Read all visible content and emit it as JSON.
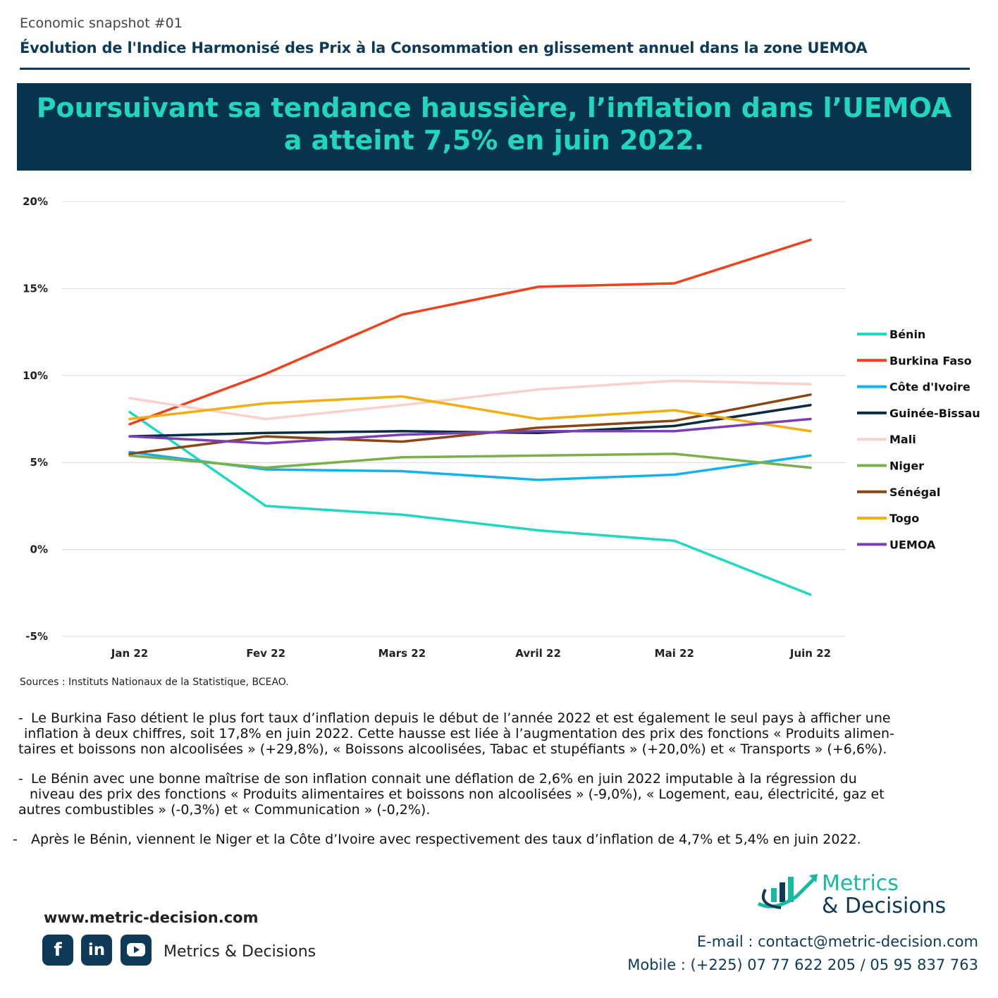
{
  "header": {
    "snapshot": "Economic snapshot #01",
    "subtitle": "Évolution de l'Indice Harmonisé des Prix à la Consommation en glissement annuel dans la zone UEMOA",
    "banner_line1": "Poursuivant sa tendance haussière, l’inflation dans l’UEMOA",
    "banner_line2": "a atteint 7,5% en juin 2022."
  },
  "chart_data": {
    "type": "line",
    "categories": [
      "Jan 22",
      "Fev 22",
      "Mars 22",
      "Avril 22",
      "Mai 22",
      "Juin 22"
    ],
    "y_ticks": [
      "20%",
      "15%",
      "10%",
      "5%",
      "0%",
      "-5%"
    ],
    "y_tick_values": [
      20,
      15,
      10,
      5,
      0,
      -5
    ],
    "ylim": [
      -5,
      20
    ],
    "grid": true,
    "legend_position": "right",
    "series": [
      {
        "name": "Bénin",
        "color": "#1fd8c0",
        "values": [
          7.9,
          2.5,
          2.0,
          1.1,
          0.5,
          -2.6
        ]
      },
      {
        "name": "Burkina Faso",
        "color": "#f0401c",
        "values": [
          7.2,
          10.1,
          13.5,
          15.1,
          15.3,
          17.8
        ]
      },
      {
        "name": "Côte d'Ivoire",
        "color": "#12b3ec",
        "values": [
          5.6,
          4.6,
          4.5,
          4.0,
          4.3,
          5.4
        ]
      },
      {
        "name": "Guinée-Bissau",
        "color": "#0b2b40",
        "values": [
          6.5,
          6.7,
          6.8,
          6.7,
          7.1,
          8.3
        ]
      },
      {
        "name": "Mali",
        "color": "#fbcfcc",
        "values": [
          8.7,
          7.5,
          8.3,
          9.2,
          9.7,
          9.5
        ]
      },
      {
        "name": "Niger",
        "color": "#7ab04a",
        "values": [
          5.4,
          4.7,
          5.3,
          5.4,
          5.5,
          4.7
        ]
      },
      {
        "name": "Sénégal",
        "color": "#8b4513",
        "values": [
          5.5,
          6.5,
          6.2,
          7.0,
          7.4,
          8.9
        ]
      },
      {
        "name": "Togo",
        "color": "#f2ad0f",
        "values": [
          7.5,
          8.4,
          8.8,
          7.5,
          8.0,
          6.8
        ]
      },
      {
        "name": "UEMOA",
        "color": "#7a3fb4",
        "values": [
          6.5,
          6.1,
          6.6,
          6.8,
          6.8,
          7.5
        ]
      }
    ]
  },
  "sources": "Sources : Instituts Nationaux de la Statistique, BCEAO.",
  "paragraphs": {
    "p1": {
      "dash": "-",
      "l1": "Le Burkina Faso détient le plus fort taux d’inflation depuis le début de l’année 2022 et est également le seul pays à afficher une",
      "l2": "inflation à  deux chiffres, soit 17,8% en juin 2022. Cette hausse est liée à l’augmentation des prix des fonctions « Produits alimen-",
      "l3": "taires et boissons non alcoolisées » (+29,8%), « Boissons alcoolisées, Tabac et stupéfiants » (+20,0%) et « Transports » (+6,6%)."
    },
    "p2": {
      "dash": "-",
      "l1": "Le Bénin avec une bonne maîtrise de son inflation connait une déflation de 2,6% en juin 2022 imputable à la régression du",
      "l2": "niveau des prix des fonctions « Produits alimentaires et boissons non alcoolisées » (-9,0%), « Logement, eau, électricité, gaz et",
      "l3": "autres combustibles » (-0,3%) et « Communication » (-0,2%)."
    },
    "p3": {
      "dash": "-",
      "l1": "Après le Bénin, viennent le Niger et la Côte d’Ivoire avec respectivement des taux d’inflation de 4,7% et 5,4% en juin 2022."
    }
  },
  "footer": {
    "website": "www.metric-decision.com",
    "social_facebook": "f",
    "social_linkedin": "in",
    "brand_name": "Metrics & Decisions",
    "logo_line1": "Metrics",
    "logo_line2": "& Decisions",
    "email": "E-mail : contact@metric-decision.com",
    "mobile": "Mobile : (+225) 07 77 622 205 / 05 95 837 763",
    "icon_facebook": "facebook-icon",
    "icon_linkedin": "linkedin-icon",
    "icon_youtube": "youtube-icon",
    "icon_logo": "bar-chart-swoosh-icon"
  }
}
